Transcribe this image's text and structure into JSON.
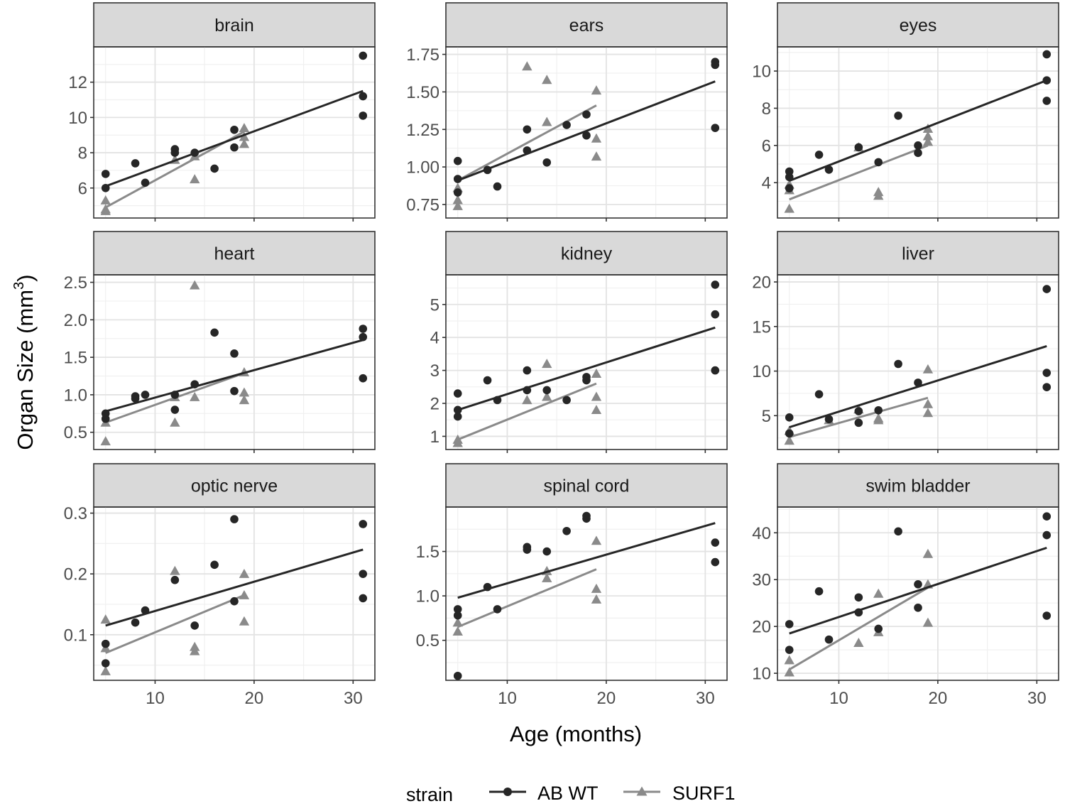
{
  "chart_data": {
    "type": "scatter",
    "facet_layout": "3x3 grid",
    "xlabel": "Age (months)",
    "ylabel": "Organ Size (mm",
    "ylabel_superscript": "3",
    "ylabel_close": ")",
    "x_range": [
      3.8,
      32.2
    ],
    "x_ticks": [
      10,
      20,
      30
    ],
    "x_tick_labels": [
      "10",
      "20",
      "30"
    ],
    "grid": true,
    "legend": {
      "position": "bottom",
      "title": "strain",
      "entries": [
        {
          "name": "AB WT",
          "color": "#262626",
          "shape": "circle"
        },
        {
          "name": "SURF1",
          "color": "#8a8a8a",
          "shape": "triangle"
        }
      ]
    },
    "facets": [
      {
        "name": "brain",
        "y_range": [
          4.3,
          14.0
        ],
        "y_ticks": [
          6,
          8,
          10,
          12
        ],
        "y_tick_labels": [
          "6",
          "8",
          "10",
          "12"
        ],
        "series": [
          {
            "name": "AB WT",
            "x": [
              5,
              5,
              8,
              9,
              12,
              12,
              14,
              16,
              18,
              18,
              31,
              31,
              31
            ],
            "y": [
              6.8,
              6.0,
              7.4,
              6.3,
              8.2,
              8.0,
              8.0,
              7.1,
              9.3,
              8.3,
              13.5,
              11.2,
              10.1
            ],
            "fit": {
              "x": [
                5,
                31
              ],
              "y": [
                6.1,
                11.5
              ]
            }
          },
          {
            "name": "SURF1",
            "x": [
              5,
              5,
              5,
              12,
              14,
              14,
              19,
              19,
              19
            ],
            "y": [
              5.3,
              4.8,
              4.7,
              7.6,
              7.8,
              6.5,
              9.4,
              8.5,
              8.9
            ],
            "fit": {
              "x": [
                5,
                19
              ],
              "y": [
                4.9,
                9.2
              ]
            }
          }
        ]
      },
      {
        "name": "ears",
        "y_range": [
          0.66,
          1.8
        ],
        "y_ticks": [
          0.75,
          1.0,
          1.25,
          1.5,
          1.75
        ],
        "y_tick_labels": [
          "0.75",
          "1.00",
          "1.25",
          "1.50",
          "1.75"
        ],
        "series": [
          {
            "name": "AB WT",
            "x": [
              5,
              5,
              5,
              8,
              9,
              12,
              12,
              14,
              16,
              18,
              18,
              31,
              31,
              31
            ],
            "y": [
              1.04,
              0.92,
              0.83,
              0.98,
              0.87,
              1.25,
              1.11,
              1.03,
              1.28,
              1.35,
              1.21,
              1.7,
              1.68,
              1.26
            ],
            "fit": {
              "x": [
                5,
                31
              ],
              "y": [
                0.91,
                1.57
              ]
            }
          },
          {
            "name": "SURF1",
            "x": [
              5,
              5,
              5,
              12,
              14,
              14,
              19,
              19,
              19
            ],
            "y": [
              0.78,
              0.74,
              0.86,
              1.67,
              1.58,
              1.3,
              1.51,
              1.19,
              1.07
            ],
            "fit": {
              "x": [
                5,
                19
              ],
              "y": [
                0.91,
                1.41
              ]
            }
          }
        ]
      },
      {
        "name": "eyes",
        "y_range": [
          2.1,
          11.3
        ],
        "y_ticks": [
          4,
          6,
          8,
          10
        ],
        "y_tick_labels": [
          "4",
          "6",
          "8",
          "10"
        ],
        "series": [
          {
            "name": "AB WT",
            "x": [
              5,
              5,
              5,
              8,
              9,
              12,
              14,
              16,
              18,
              18,
              31,
              31,
              31
            ],
            "y": [
              4.6,
              4.3,
              3.7,
              5.5,
              4.7,
              5.9,
              5.1,
              7.6,
              5.6,
              6.0,
              10.9,
              9.5,
              8.4
            ],
            "fit": {
              "x": [
                5,
                31
              ],
              "y": [
                4.1,
                9.5
              ]
            }
          },
          {
            "name": "SURF1",
            "x": [
              5,
              5,
              5,
              12,
              14,
              14,
              19,
              19,
              19
            ],
            "y": [
              3.6,
              3.9,
              2.6,
              5.9,
              3.5,
              3.3,
              6.9,
              6.5,
              6.2
            ],
            "fit": {
              "x": [
                5,
                19
              ],
              "y": [
                3.1,
                6.0
              ]
            }
          }
        ]
      },
      {
        "name": "heart",
        "y_range": [
          0.27,
          2.6
        ],
        "y_ticks": [
          0.5,
          1.0,
          1.5,
          2.0,
          2.5
        ],
        "y_tick_labels": [
          "0.5",
          "1.0",
          "1.5",
          "2.0",
          "2.5"
        ],
        "series": [
          {
            "name": "AB WT",
            "x": [
              5,
              5,
              8,
              8,
              9,
              12,
              12,
              14,
              16,
              18,
              18,
              31,
              31,
              31
            ],
            "y": [
              0.75,
              0.68,
              0.98,
              0.95,
              1.0,
              1.0,
              0.8,
              1.14,
              1.83,
              1.55,
              1.05,
              1.88,
              1.77,
              1.22
            ],
            "fit": {
              "x": [
                5,
                31
              ],
              "y": [
                0.78,
                1.73
              ]
            }
          },
          {
            "name": "SURF1",
            "x": [
              5,
              5,
              12,
              12,
              14,
              14,
              19,
              19,
              19
            ],
            "y": [
              0.38,
              0.63,
              0.97,
              0.63,
              2.46,
              0.97,
              1.3,
              1.03,
              0.93
            ],
            "fit": {
              "x": [
                5,
                19
              ],
              "y": [
                0.63,
                1.29
              ]
            }
          }
        ]
      },
      {
        "name": "kidney",
        "y_range": [
          0.6,
          5.9
        ],
        "y_ticks": [
          1,
          2,
          3,
          4,
          5
        ],
        "y_tick_labels": [
          "1",
          "2",
          "3",
          "4",
          "5"
        ],
        "series": [
          {
            "name": "AB WT",
            "x": [
              5,
              5,
              5,
              8,
              9,
              12,
              12,
              14,
              16,
              18,
              18,
              31,
              31,
              31
            ],
            "y": [
              2.3,
              1.8,
              1.6,
              2.7,
              2.1,
              3.0,
              2.4,
              2.4,
              2.1,
              2.8,
              2.7,
              5.6,
              4.7,
              3.0
            ],
            "fit": {
              "x": [
                5,
                31
              ],
              "y": [
                1.8,
                4.3
              ]
            }
          },
          {
            "name": "SURF1",
            "x": [
              5,
              5,
              12,
              14,
              14,
              19,
              19,
              19
            ],
            "y": [
              0.8,
              0.9,
              2.1,
              3.2,
              2.2,
              2.9,
              2.2,
              1.8
            ],
            "fit": {
              "x": [
                5,
                19
              ],
              "y": [
                0.9,
                2.6
              ]
            }
          }
        ]
      },
      {
        "name": "liver",
        "y_range": [
          1.2,
          20.8
        ],
        "y_ticks": [
          5,
          10,
          15,
          20
        ],
        "y_tick_labels": [
          "5",
          "10",
          "15",
          "20"
        ],
        "series": [
          {
            "name": "AB WT",
            "x": [
              5,
              5,
              8,
              9,
              12,
              12,
              14,
              16,
              18,
              31,
              31,
              31
            ],
            "y": [
              4.8,
              3.0,
              7.4,
              4.6,
              4.2,
              5.5,
              5.6,
              10.8,
              8.7,
              19.2,
              9.8,
              8.2
            ],
            "fit": {
              "x": [
                5,
                31
              ],
              "y": [
                3.7,
                12.8
              ]
            }
          },
          {
            "name": "SURF1",
            "x": [
              5,
              5,
              9,
              12,
              14,
              14,
              19,
              19,
              19
            ],
            "y": [
              2.2,
              3.3,
              4.5,
              5.7,
              4.7,
              4.5,
              10.2,
              6.3,
              5.3
            ],
            "fit": {
              "x": [
                5,
                19
              ],
              "y": [
                2.6,
                7.0
              ]
            }
          }
        ]
      },
      {
        "name": "optic nerve",
        "y_range": [
          0.025,
          0.31
        ],
        "y_ticks": [
          0.1,
          0.2,
          0.3
        ],
        "y_tick_labels": [
          "0.1",
          "0.2",
          "0.3"
        ],
        "series": [
          {
            "name": "AB WT",
            "x": [
              5,
              5,
              8,
              9,
              12,
              14,
              16,
              18,
              18,
              31,
              31,
              31
            ],
            "y": [
              0.085,
              0.053,
              0.12,
              0.14,
              0.19,
              0.115,
              0.215,
              0.29,
              0.155,
              0.282,
              0.2,
              0.16
            ],
            "fit": {
              "x": [
                5,
                31
              ],
              "y": [
                0.115,
                0.24
              ]
            }
          },
          {
            "name": "SURF1",
            "x": [
              5,
              5,
              5,
              12,
              14,
              14,
              19,
              19,
              19
            ],
            "y": [
              0.125,
              0.078,
              0.04,
              0.205,
              0.08,
              0.073,
              0.2,
              0.165,
              0.122
            ],
            "fit": {
              "x": [
                5,
                19
              ],
              "y": [
                0.07,
                0.165
              ]
            }
          }
        ]
      },
      {
        "name": "spinal cord",
        "y_range": [
          0.05,
          2.0
        ],
        "y_ticks": [
          0.5,
          1.0,
          1.5
        ],
        "y_tick_labels": [
          "0.5",
          "1.0",
          "1.5"
        ],
        "series": [
          {
            "name": "AB WT",
            "x": [
              5,
              5,
              5,
              8,
              9,
              12,
              12,
              14,
              16,
              18,
              18,
              31,
              31
            ],
            "y": [
              0.85,
              0.78,
              0.1,
              1.1,
              0.85,
              1.55,
              1.52,
              1.5,
              1.73,
              1.9,
              1.87,
              1.6,
              1.38
            ],
            "fit": {
              "x": [
                5,
                31
              ],
              "y": [
                0.98,
                1.82
              ]
            }
          },
          {
            "name": "SURF1",
            "x": [
              5,
              5,
              14,
              14,
              19,
              19,
              19
            ],
            "y": [
              0.6,
              0.7,
              1.28,
              1.2,
              1.62,
              1.08,
              0.96
            ],
            "fit": {
              "x": [
                5,
                19
              ],
              "y": [
                0.65,
                1.3
              ]
            }
          }
        ]
      },
      {
        "name": "swim bladder",
        "y_range": [
          8.5,
          45.5
        ],
        "y_ticks": [
          10,
          20,
          30,
          40
        ],
        "y_tick_labels": [
          "10",
          "20",
          "30",
          "40"
        ],
        "series": [
          {
            "name": "AB WT",
            "x": [
              5,
              5,
              8,
              9,
              12,
              12,
              14,
              16,
              18,
              18,
              31,
              31,
              31
            ],
            "y": [
              20.5,
              15.0,
              27.5,
              17.2,
              26.2,
              23.0,
              19.5,
              40.3,
              29.0,
              24.0,
              43.5,
              39.5,
              22.3
            ],
            "fit": {
              "x": [
                5,
                31
              ],
              "y": [
                18.5,
                36.8
              ]
            }
          },
          {
            "name": "SURF1",
            "x": [
              5,
              5,
              12,
              14,
              14,
              19,
              19,
              19
            ],
            "y": [
              12.8,
              10.2,
              16.5,
              27.0,
              18.8,
              35.5,
              29.0,
              20.8
            ],
            "fit": {
              "x": [
                5,
                19
              ],
              "y": [
                10.8,
                28.3
              ]
            }
          }
        ]
      }
    ]
  }
}
